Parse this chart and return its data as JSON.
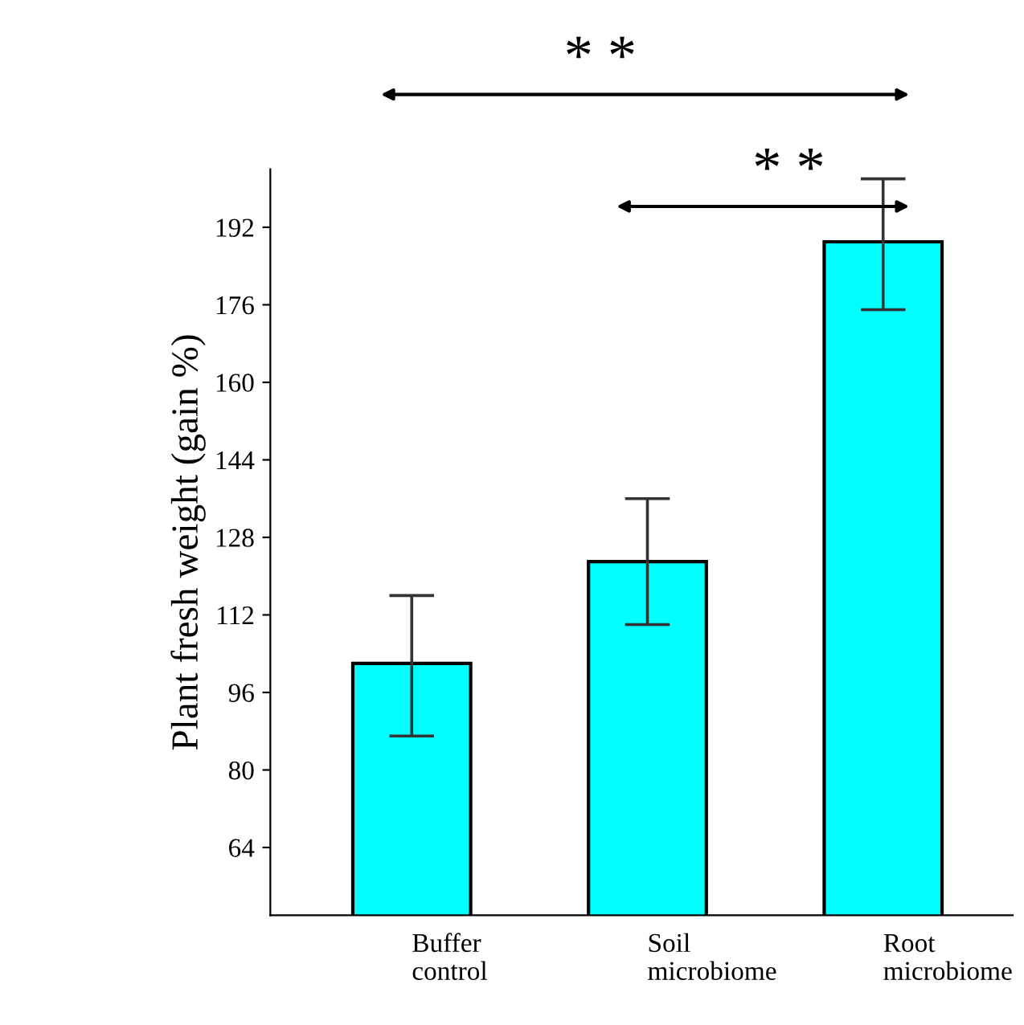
{
  "chart_data": {
    "type": "bar",
    "ylabel": "Plant fresh weight (gain %)",
    "categories": [
      "Buffer\ncontrol",
      "Soil\nmicrobiome",
      "Root\nmicrobiome"
    ],
    "values": [
      102,
      123,
      189
    ],
    "errors": [
      [
        87,
        116
      ],
      [
        110,
        136
      ],
      [
        175,
        202
      ]
    ],
    "color": "#00ffff",
    "ylim": [
      50,
      204
    ],
    "yticks": [
      64,
      80,
      96,
      112,
      128,
      144,
      160,
      176,
      192
    ],
    "grid": false,
    "annotations": [
      "* *",
      "* *"
    ]
  }
}
